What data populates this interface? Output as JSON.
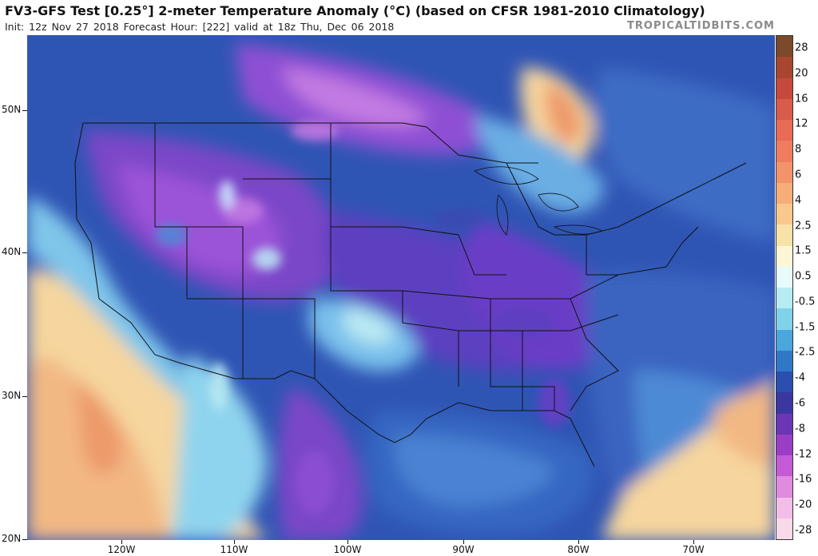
{
  "header": {
    "title": "FV3-GFS Test [0.25°] 2-meter Temperature Anomaly (°C) (based on CFSR 1981-2010 Climatology)",
    "subtitle": "Init: 12z Nov 27 2018   Forecast Hour: [222]   valid at 18z Thu, Dec 06 2018",
    "brand": "TROPICALTIDBITS.COM"
  },
  "axes": {
    "lat_labels": [
      "50N",
      "40N",
      "30N",
      "20N"
    ],
    "lon_labels": [
      "120W",
      "110W",
      "100W",
      "90W",
      "80W",
      "70W"
    ]
  },
  "colorbar": {
    "labels": [
      "28",
      "20",
      "16",
      "12",
      "8",
      "6",
      "4",
      "2.5",
      "1.5",
      "0.5",
      "-0.5",
      "-1.5",
      "-2.5",
      "-4",
      "-6",
      "-8",
      "-12",
      "-16",
      "-20",
      "-28"
    ],
    "colors": [
      "#7a4a2a",
      "#a8462f",
      "#c54a3b",
      "#d85c4a",
      "#e76b55",
      "#ee7d60",
      "#f3936a",
      "#f6ad78",
      "#f8c88d",
      "#f9e2a8",
      "#fdf6d6",
      "#e8fbfb",
      "#b6ecf2",
      "#7fd2ea",
      "#4aa6dd",
      "#2f78c8",
      "#2a4fae",
      "#3b37a0",
      "#6a36b3",
      "#9a3ec6",
      "#c45ad6",
      "#e08ae0",
      "#f2bde6",
      "#f8d9ea"
    ]
  },
  "map": {
    "region": "Continental United States",
    "colors": {
      "deep_blue": "#2f50b0",
      "purple": "#6a3fc0",
      "violet": "#9b52d8",
      "light_blue": "#5fa6e0",
      "cyan": "#8fd6ee",
      "cream": "#f7e7b8",
      "peach": "#f6c897",
      "orange": "#ee9f6c",
      "border": "#111111"
    }
  }
}
